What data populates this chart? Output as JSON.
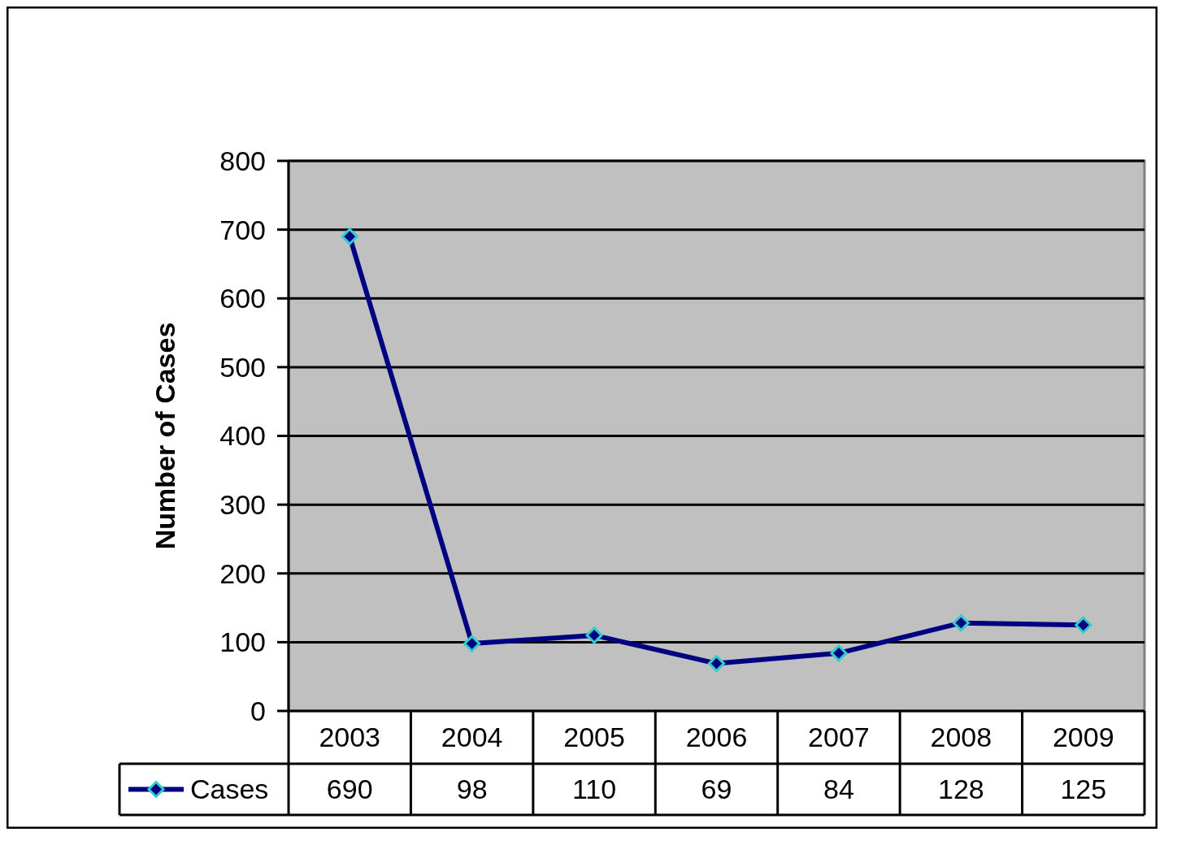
{
  "chart_data": {
    "type": "line",
    "ylabel": "Number of Cases",
    "categories": [
      "2003",
      "2004",
      "2005",
      "2006",
      "2007",
      "2008",
      "2009"
    ],
    "series": [
      {
        "name": "Cases",
        "color": "#000080",
        "values": [
          690,
          98,
          110,
          69,
          84,
          128,
          125
        ]
      }
    ],
    "ylim": [
      0,
      800
    ],
    "yticks": [
      0,
      100,
      200,
      300,
      400,
      500,
      600,
      700,
      800
    ],
    "grid": "y",
    "legend": "bottom",
    "marker": "diamond",
    "line_style": "solid",
    "data_labels": true
  }
}
